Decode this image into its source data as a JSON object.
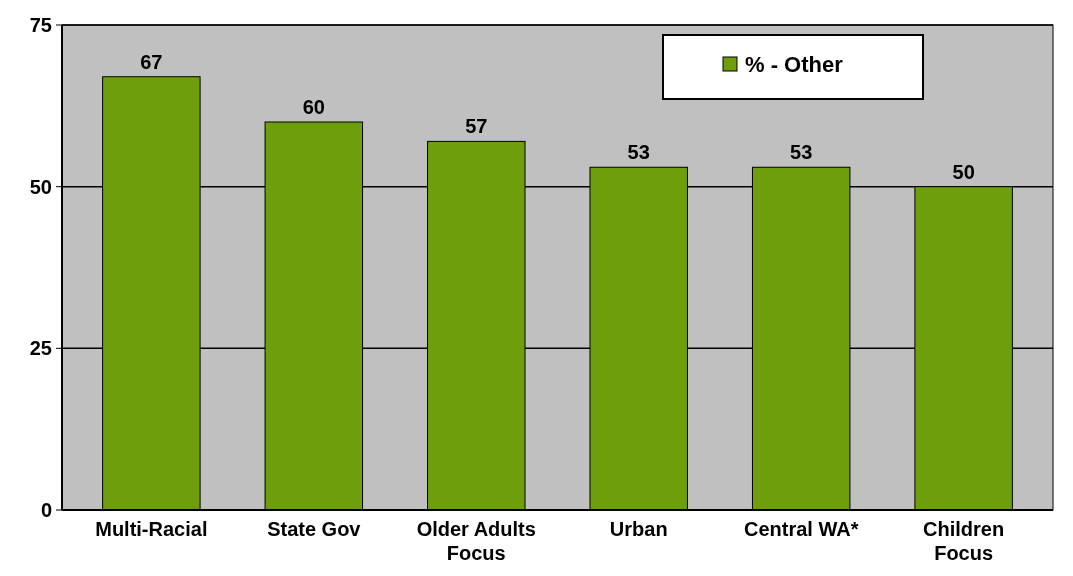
{
  "chart_data": {
    "type": "bar",
    "categories": [
      "Multi-Racial",
      "State Gov",
      "Older Adults Focus",
      "Urban",
      "Central WA*",
      "Children Focus"
    ],
    "series": [
      {
        "name": "% - Other",
        "color": "#6e9e0c",
        "values": [
          67,
          60,
          57,
          53,
          53,
          50
        ]
      }
    ],
    "ylim": [
      0,
      75
    ],
    "yticks": [
      0,
      25,
      50,
      75
    ],
    "grid": "y",
    "legend": "top right",
    "data_labels": true
  }
}
